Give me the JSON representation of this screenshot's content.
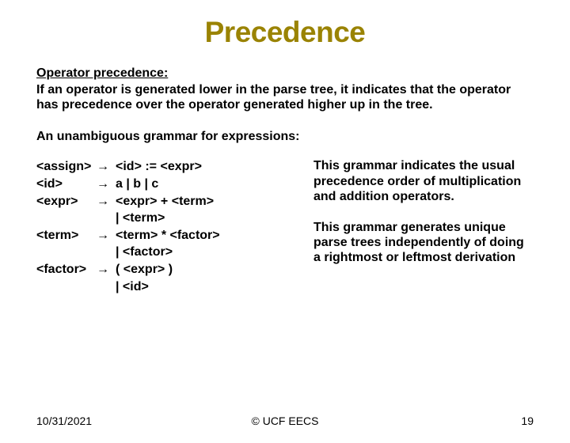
{
  "title": "Precedence",
  "sectionHeader": "Operator precedence:",
  "intro": "If an operator is generated lower in the parse tree, it indicates that the operator has precedence over the operator generated higher up in the tree.",
  "subhead": "An unambiguous grammar for expressions:",
  "arrow": "→",
  "grammar": {
    "rules": [
      {
        "lhs": "<assign>",
        "rhs": "<id> := <expr>"
      },
      {
        "lhs": "<id>",
        "rhs": "a | b | c"
      },
      {
        "lhs": "<expr>",
        "rhs": "<expr> + <term>"
      },
      {
        "alt": "|  <term>"
      },
      {
        "lhs": "<term>",
        "rhs": "<term> * <factor>"
      },
      {
        "alt": "|   <factor>"
      },
      {
        "lhs": "<factor>",
        "rhs": " ( <expr> )"
      },
      {
        "alt": "| <id>"
      }
    ]
  },
  "commentary": {
    "p1": "This grammar indicates the usual precedence order of multiplication and addition operators.",
    "p2": "This grammar generates unique parse trees independently of doing a rightmost or leftmost derivation"
  },
  "footer": {
    "date": "10/31/2021",
    "center": "© UCF EECS",
    "page": "19"
  }
}
